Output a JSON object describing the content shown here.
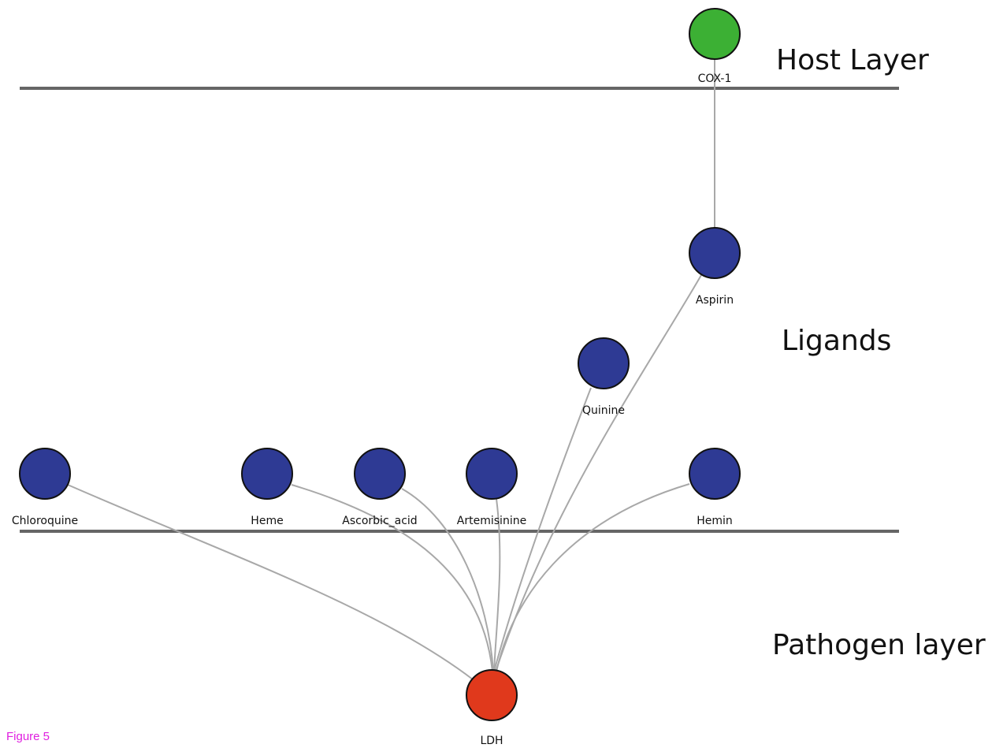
{
  "layers": {
    "host": "Host Layer",
    "ligands": "Ligands",
    "pathogen": "Pathogen layer"
  },
  "nodes": {
    "cox1": {
      "label": "COX-1",
      "color": "#3cb034",
      "type": "host-target"
    },
    "aspirin": {
      "label": "Aspirin",
      "color": "#2e3a94",
      "type": "ligand"
    },
    "quinine": {
      "label": "Quinine",
      "color": "#2e3a94",
      "type": "ligand"
    },
    "chloroquine": {
      "label": "Chloroquine",
      "color": "#2e3a94",
      "type": "ligand"
    },
    "heme": {
      "label": "Heme",
      "color": "#2e3a94",
      "type": "ligand"
    },
    "ascorbic_acid": {
      "label": "Ascorbic_acid",
      "color": "#2e3a94",
      "type": "ligand"
    },
    "artemisinine": {
      "label": "Artemisinine",
      "color": "#2e3a94",
      "type": "ligand"
    },
    "hemin": {
      "label": "Hemin",
      "color": "#2e3a94",
      "type": "ligand"
    },
    "ldh": {
      "label": "LDH",
      "color": "#e0391c",
      "type": "pathogen-target"
    }
  },
  "edges": [
    {
      "from": "cox1",
      "to": "aspirin"
    },
    {
      "from": "aspirin",
      "to": "ldh"
    },
    {
      "from": "quinine",
      "to": "ldh"
    },
    {
      "from": "chloroquine",
      "to": "ldh"
    },
    {
      "from": "heme",
      "to": "ldh"
    },
    {
      "from": "ascorbic_acid",
      "to": "ldh"
    },
    {
      "from": "artemisinine",
      "to": "ldh"
    },
    {
      "from": "hemin",
      "to": "ldh"
    }
  ],
  "caption": "Figure 5",
  "colors": {
    "edge": "#a8a8a8",
    "separator": "#666666",
    "node_stroke": "#111111"
  }
}
